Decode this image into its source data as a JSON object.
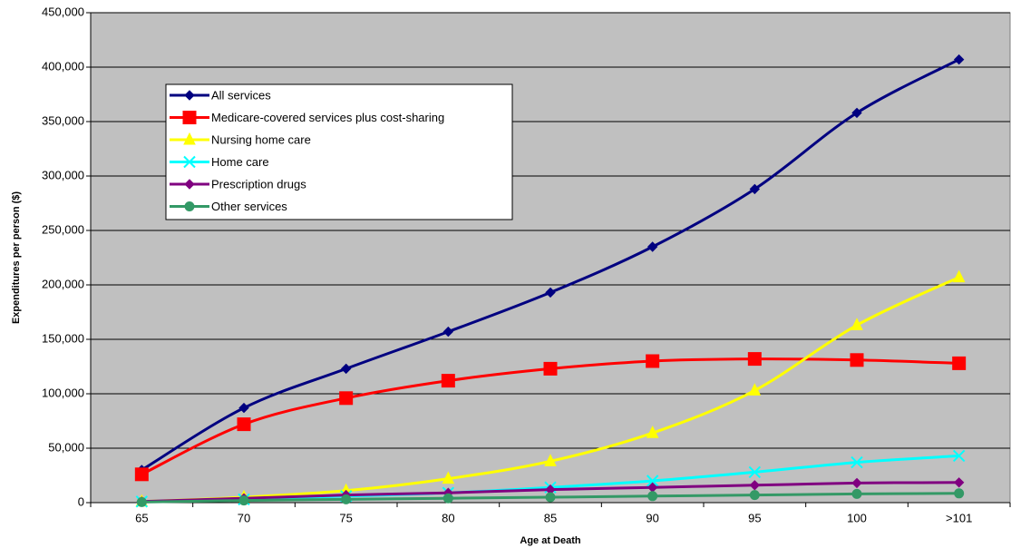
{
  "chart_data": {
    "type": "line",
    "x_label": "Age at Death",
    "y_label": "Expenditures per person ($)",
    "categories": [
      "65",
      "70",
      "75",
      "80",
      "85",
      "90",
      "95",
      "100",
      ">101"
    ],
    "ylim": [
      0,
      450000
    ],
    "yticks": [
      0,
      {
        "value": 50000,
        "label": "50,000"
      },
      {
        "value": 100000,
        "label": "100,000"
      },
      {
        "value": 150000,
        "label": "150,000"
      },
      {
        "value": 200000,
        "label": "200,000"
      },
      {
        "value": 250000,
        "label": "250,000"
      },
      {
        "value": 300000,
        "label": "300,000"
      },
      {
        "value": 350000,
        "label": "350,000"
      },
      {
        "value": 400000,
        "label": "400,000"
      },
      {
        "value": 450000,
        "label": "450,000"
      }
    ],
    "grid": true,
    "legend": "upper left",
    "series": [
      {
        "name": "All services",
        "color": "#000080",
        "marker": "diamond",
        "values": [
          30000,
          87000,
          123000,
          157000,
          193000,
          235000,
          288000,
          358000,
          407000
        ]
      },
      {
        "name": "Medicare-covered services plus cost-sharing",
        "color": "#ff0000",
        "marker": "square",
        "values": [
          26000,
          72000,
          96000,
          112000,
          123000,
          130000,
          132000,
          131000,
          128000
        ]
      },
      {
        "name": "Nursing home care",
        "color": "#ffff00",
        "marker": "triangle",
        "values": [
          1000,
          5000,
          11000,
          22000,
          38000,
          64000,
          103000,
          163000,
          207000
        ]
      },
      {
        "name": "Home care",
        "color": "#00ffff",
        "marker": "x",
        "values": [
          1000,
          3000,
          6000,
          9000,
          14000,
          20000,
          28000,
          37000,
          43000
        ]
      },
      {
        "name": "Prescription drugs",
        "color": "#800080",
        "marker": "diamond",
        "values": [
          1000,
          4000,
          7000,
          9000,
          12000,
          14000,
          16000,
          18000,
          18500
        ]
      },
      {
        "name": "Other services",
        "color": "#339966",
        "marker": "circle",
        "values": [
          500,
          2000,
          3000,
          4000,
          5000,
          6000,
          7000,
          8000,
          8500
        ]
      }
    ]
  }
}
